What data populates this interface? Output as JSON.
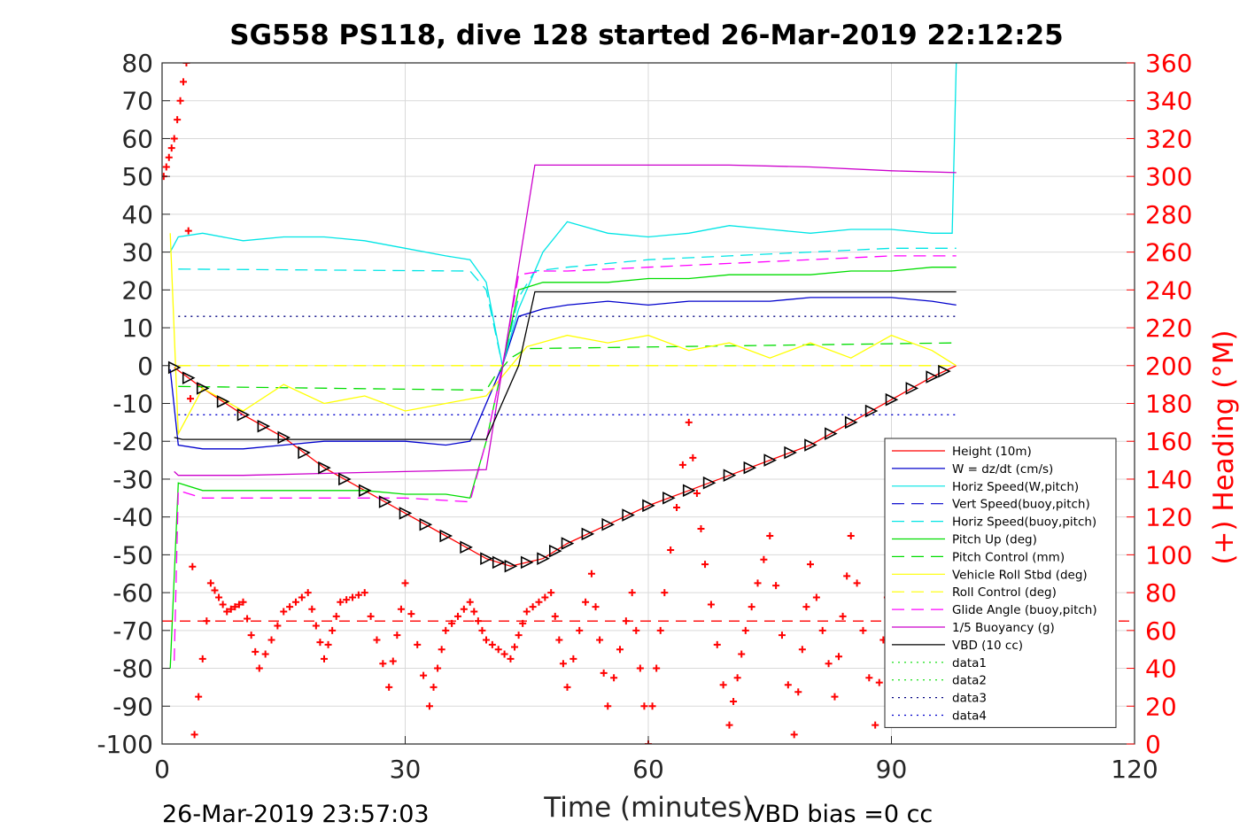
{
  "chart_data": {
    "type": "line",
    "title": "SG558 PS118, dive 128 started 26-Mar-2019 22:12:25",
    "xlabel": "Time (minutes)",
    "ylabel_right": "(+) Heading (°M)",
    "footer_left": "26-Mar-2019 23:57:03",
    "footer_right": "VBD bias =0 cc",
    "xlim": [
      0,
      120
    ],
    "ylim": [
      -100,
      80
    ],
    "ylim_right": [
      0,
      360
    ],
    "xticks": [
      "0",
      "30",
      "60",
      "90",
      "120"
    ],
    "yticks": [
      "80",
      "70",
      "60",
      "50",
      "40",
      "30",
      "20",
      "10",
      "0",
      "-10",
      "-20",
      "-30",
      "-40",
      "-50",
      "-60",
      "-70",
      "-80",
      "-90",
      "-100"
    ],
    "yticks_right": [
      "360",
      "340",
      "320",
      "300",
      "280",
      "260",
      "240",
      "220",
      "200",
      "180",
      "160",
      "140",
      "120",
      "100",
      "80",
      "60",
      "40",
      "20",
      "0"
    ],
    "grid": true,
    "legend_position": "lower-right",
    "legend": [
      {
        "label": "Height (10m)",
        "color": "#ff0000",
        "dash": "solid"
      },
      {
        "label": "W = dz/dt (cm/s)",
        "color": "#0000cc",
        "dash": "solid"
      },
      {
        "label": "Horiz Speed(W,pitch)",
        "color": "#00e5e5",
        "dash": "solid"
      },
      {
        "label": "Vert Speed(buoy,pitch)",
        "color": "#0000cc",
        "dash": "dash"
      },
      {
        "label": "Horiz Speed(buoy,pitch)",
        "color": "#00e5e5",
        "dash": "dash"
      },
      {
        "label": "Pitch Up (deg)",
        "color": "#00dd00",
        "dash": "solid"
      },
      {
        "label": "Pitch Control (mm)",
        "color": "#00dd00",
        "dash": "dash"
      },
      {
        "label": "Vehicle Roll Stbd (deg)",
        "color": "#ffff00",
        "dash": "solid"
      },
      {
        "label": "Roll Control (deg)",
        "color": "#ffff00",
        "dash": "dash"
      },
      {
        "label": "Glide Angle (buoy,pitch)",
        "color": "#ff00ff",
        "dash": "dash"
      },
      {
        "label": "1/5 Buoyancy (g)",
        "color": "#cc00cc",
        "dash": "solid"
      },
      {
        "label": "VBD (10 cc)",
        "color": "#000000",
        "dash": "solid"
      },
      {
        "label": "data1",
        "color": "#00dd00",
        "dash": "dot"
      },
      {
        "label": "data2",
        "color": "#00dd00",
        "dash": "dot"
      },
      {
        "label": "data3",
        "color": "#000080",
        "dash": "dot"
      },
      {
        "label": "data4",
        "color": "#0000cc",
        "dash": "dot"
      }
    ],
    "series": [
      {
        "name": "Height (10m)",
        "color": "#ff0000",
        "x": [
          1.5,
          5,
          10,
          15,
          20,
          25,
          30,
          35,
          40,
          43,
          47,
          50,
          55,
          60,
          65,
          70,
          75,
          80,
          85,
          90,
          95,
          98
        ],
        "y": [
          -0.5,
          -6,
          -13,
          -19,
          -27,
          -33,
          -39,
          -45,
          -51,
          -53,
          -51,
          -47,
          -42,
          -37,
          -33,
          -29,
          -25,
          -21,
          -15,
          -9,
          -3,
          0
        ]
      },
      {
        "name": "W = dz/dt (cm/s)",
        "color": "#0000cc",
        "x": [
          1,
          2,
          5,
          10,
          15,
          20,
          25,
          30,
          35,
          38,
          40,
          42,
          44,
          47,
          50,
          55,
          60,
          65,
          70,
          75,
          80,
          85,
          90,
          95,
          98
        ],
        "y": [
          -1,
          -21,
          -22,
          -22,
          -21,
          -20,
          -20,
          -20,
          -21,
          -20,
          -10,
          0,
          13,
          15,
          16,
          17,
          16,
          17,
          17,
          17,
          18,
          18,
          18,
          17,
          16
        ]
      },
      {
        "name": "Horiz Speed(W,pitch)",
        "color": "#00e5e5",
        "x": [
          1,
          2,
          5,
          10,
          15,
          20,
          25,
          30,
          35,
          38,
          40,
          42,
          44,
          47,
          50,
          55,
          60,
          65,
          70,
          75,
          80,
          85,
          90,
          95,
          97.5,
          98
        ],
        "y": [
          30,
          34,
          35,
          33,
          34,
          34,
          33,
          31,
          29,
          28,
          22,
          0,
          15,
          30,
          38,
          35,
          34,
          35,
          37,
          36,
          35,
          36,
          36,
          35,
          35,
          80
        ]
      },
      {
        "name": "Horiz Speed(buoy,pitch)",
        "color": "#00e5e5",
        "x": [
          2,
          38,
          40,
          42,
          44,
          46,
          50,
          60,
          70,
          80,
          90,
          98
        ],
        "y": [
          25.5,
          25,
          20,
          0,
          18,
          25,
          26,
          28,
          29,
          30,
          31,
          31
        ]
      },
      {
        "name": "Pitch Up (deg)",
        "color": "#00dd00",
        "x": [
          1,
          2,
          5,
          10,
          15,
          20,
          25,
          30,
          35,
          38,
          40,
          42,
          44,
          47,
          50,
          55,
          60,
          65,
          70,
          75,
          80,
          85,
          90,
          95,
          98
        ],
        "y": [
          -80,
          -31,
          -33,
          -33,
          -33,
          -33,
          -33,
          -34,
          -34,
          -35,
          -20,
          0,
          20,
          22,
          22,
          22,
          23,
          23,
          24,
          24,
          24,
          25,
          25,
          26,
          26
        ]
      },
      {
        "name": "Pitch Control (mm)",
        "color": "#00dd00",
        "x": [
          2,
          40,
          41,
          43,
          45,
          98
        ],
        "y": [
          -5.5,
          -6.5,
          -3,
          2,
          4.5,
          6
        ]
      },
      {
        "name": "Vehicle Roll Stbd (deg)",
        "color": "#ffff00",
        "x": [
          1,
          2,
          5,
          10,
          15,
          20,
          25,
          30,
          35,
          40,
          45,
          50,
          55,
          60,
          65,
          70,
          75,
          80,
          85,
          90,
          95,
          98
        ],
        "y": [
          35,
          -18,
          -6,
          -12,
          -5,
          -10,
          -8,
          -12,
          -10,
          -8,
          5,
          8,
          6,
          8,
          4,
          6,
          2,
          6,
          2,
          8,
          4,
          0
        ]
      },
      {
        "name": "Roll Control (deg)",
        "color": "#ffff00",
        "x": [
          2,
          98
        ],
        "y": [
          0,
          0
        ]
      },
      {
        "name": "Glide Angle (buoy,pitch)",
        "color": "#ff00ff",
        "x": [
          1.5,
          2,
          5,
          10,
          20,
          30,
          38,
          40,
          42,
          44,
          47,
          50,
          60,
          70,
          80,
          90,
          98
        ],
        "y": [
          -78,
          -33,
          -35,
          -35,
          -35,
          -35,
          -36,
          -20,
          0,
          24,
          25,
          25,
          26,
          27,
          28,
          29,
          29
        ]
      },
      {
        "name": "1/5 Buoyancy (g)",
        "color": "#cc00cc",
        "x": [
          1.5,
          2,
          10,
          20,
          30,
          40,
          46,
          50,
          60,
          70,
          80,
          90,
          98
        ],
        "y": [
          -28,
          -29,
          -29,
          -28.5,
          -28,
          -27.5,
          53,
          53,
          53,
          53,
          52.5,
          51.5,
          51
        ]
      },
      {
        "name": "VBD (10 cc)",
        "color": "#000000",
        "x": [
          1.5,
          2.5,
          38,
          40,
          44,
          46,
          98
        ],
        "y": [
          -19,
          -19.5,
          -19.5,
          -19.5,
          0,
          19.5,
          19.5
        ]
      },
      {
        "name": "Heading (+)",
        "color": "#ff0000",
        "axis": "right",
        "x": [
          0.2,
          1.5,
          3,
          4,
          6,
          8,
          10,
          12,
          15,
          18,
          20,
          22,
          25,
          28,
          30,
          33,
          35,
          38,
          40,
          43,
          45,
          48,
          50,
          53,
          55,
          58,
          60,
          62,
          65,
          67,
          70,
          72,
          75,
          78,
          80,
          83,
          85,
          88,
          90,
          93,
          95,
          97
        ],
        "y": [
          300,
          320,
          360,
          5,
          85,
          70,
          75,
          40,
          70,
          80,
          45,
          75,
          80,
          30,
          85,
          20,
          60,
          75,
          55,
          45,
          70,
          80,
          30,
          90,
          20,
          80,
          0,
          80,
          170,
          95,
          10,
          60,
          110,
          5,
          95,
          25,
          110,
          10,
          100,
          20,
          80,
          65
        ]
      },
      {
        "name": "data3",
        "color": "#000080",
        "x": [
          2,
          98
        ],
        "y": [
          13,
          13
        ]
      },
      {
        "name": "data4",
        "color": "#0000cc",
        "x": [
          2,
          98
        ],
        "y": [
          -13,
          -13
        ]
      },
      {
        "name": "data1",
        "color": "#ff0000",
        "x": [
          0,
          120
        ],
        "y": [
          -67.5,
          -67.5
        ]
      }
    ]
  }
}
